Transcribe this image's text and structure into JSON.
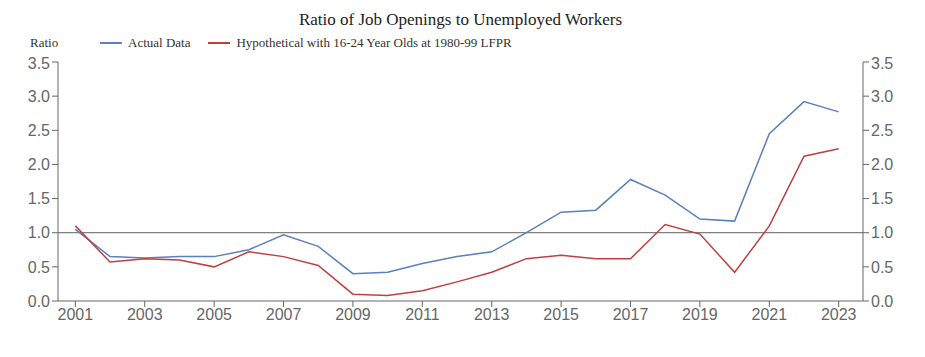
{
  "chart_data": {
    "type": "line",
    "title": "Ratio of Job Openings to Unemployed Workers",
    "y_label": "Ratio",
    "x": [
      2001,
      2002,
      2003,
      2004,
      2005,
      2006,
      2007,
      2008,
      2009,
      2010,
      2011,
      2012,
      2013,
      2014,
      2015,
      2016,
      2017,
      2018,
      2019,
      2020,
      2021,
      2022,
      2023
    ],
    "xlim": [
      2000.5,
      2023.7
    ],
    "xticks": [
      2001,
      2003,
      2005,
      2007,
      2009,
      2011,
      2013,
      2015,
      2017,
      2019,
      2021,
      2023
    ],
    "ylim": [
      0.0,
      3.5
    ],
    "yticks": [
      {
        "value": 0.0,
        "label": "0.0"
      },
      0.5,
      {
        "value": 1.0,
        "label": "1.0"
      },
      1.5,
      {
        "value": 2.0,
        "label": "2.0"
      },
      2.5,
      {
        "value": 3.0,
        "label": "3.0"
      },
      3.5
    ],
    "y2lim": [
      0.0,
      3.5
    ],
    "y2ticks": [
      {
        "value": 0.0,
        "label": "0.0"
      },
      0.5,
      {
        "value": 1.0,
        "label": "1.0"
      },
      1.5,
      {
        "value": 2.0,
        "label": "2.0"
      },
      2.5,
      {
        "value": 3.0,
        "label": "3.0"
      },
      3.5
    ],
    "series": [
      {
        "name": "Actual Data",
        "color": "#5B7FBF",
        "values": [
          1.05,
          0.65,
          0.63,
          0.65,
          0.65,
          0.75,
          0.97,
          0.8,
          0.4,
          0.42,
          0.55,
          0.65,
          0.72,
          1.0,
          1.3,
          1.33,
          1.78,
          1.55,
          1.2,
          1.17,
          2.45,
          2.92,
          2.77
        ]
      },
      {
        "name": "Hypothetical with 16-24 Year Olds at 1980-99 LFPR",
        "color": "#BF4040",
        "values": [
          1.1,
          0.57,
          0.62,
          0.6,
          0.5,
          0.72,
          0.65,
          0.52,
          0.1,
          0.08,
          0.15,
          0.28,
          0.42,
          0.62,
          0.67,
          0.62,
          0.62,
          1.12,
          0.98,
          0.42,
          1.1,
          2.12,
          2.23
        ]
      }
    ],
    "reference_lines": [
      {
        "y": 1.0,
        "color": "#606060"
      }
    ],
    "legend": "upper left",
    "grid": false
  }
}
